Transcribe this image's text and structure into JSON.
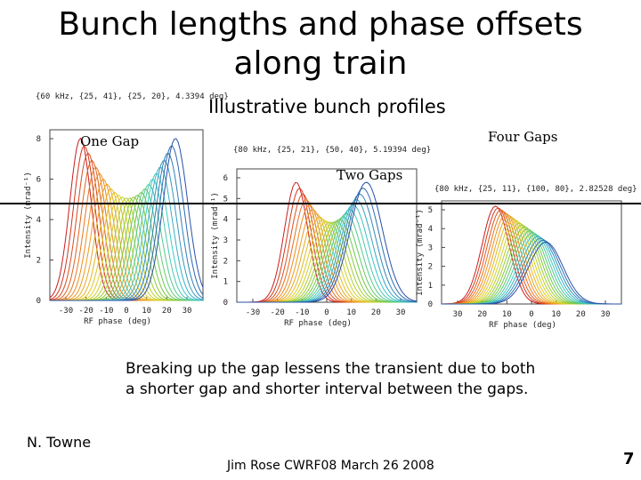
{
  "slide": {
    "title_line1": "Bunch lengths and phase offsets",
    "title_line2": "along train",
    "subtitle": "Illustrative bunch profiles",
    "label_one_gap": "One Gap",
    "label_two_gaps": "Two Gaps",
    "label_four_gaps": "Four Gaps",
    "caption": "Breaking up the gap lessens the transient due to both a shorter gap and shorter interval between the gaps.",
    "author": "N. Towne",
    "footer": "Jim Rose CWRF08 March 26 2008",
    "page_number": "7"
  },
  "panels": [
    {
      "header": "{60 kHz, {25, 41}, {25, 20}, 4.3394 deg}",
      "ylabel": "Intensity (mrad⁻¹)",
      "xlabel": "RF phase (deg)",
      "yticks": [
        "0",
        "2",
        "4",
        "6",
        "8"
      ],
      "xticks": [
        "-30",
        "-20",
        "-10",
        "0",
        "10",
        "20",
        "30"
      ]
    },
    {
      "header": "{80 kHz, {25, 21}, {50, 40}, 5.19394 deg}",
      "ylabel": "Intensity (mrad⁻¹)",
      "xlabel": "RF phase (deg)",
      "yticks": [
        "0",
        "1",
        "2",
        "3",
        "4",
        "5",
        "6"
      ],
      "xticks": [
        "-30",
        "-20",
        "-10",
        "0",
        "10",
        "20",
        "30"
      ]
    },
    {
      "header": "{80 kHz, {25, 11}, {100, 80}, 2.82528 deg}",
      "ylabel": "Intensity (mrad⁻¹)",
      "xlabel": "RF phase (deg)",
      "yticks": [
        "0",
        "1",
        "2",
        "3",
        "4",
        "5"
      ],
      "xticks": [
        "30",
        "20",
        "10",
        "0",
        "10",
        "20",
        "30"
      ]
    }
  ]
}
